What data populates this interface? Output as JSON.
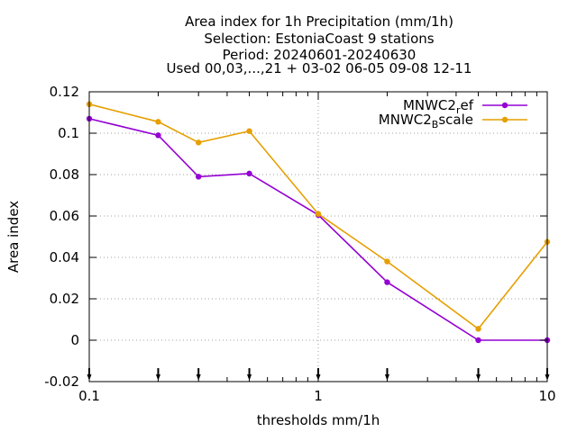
{
  "chart_data": {
    "type": "line",
    "title_lines": [
      "Area index  for 1h Precipitation (mm/1h)",
      "Selection: EstoniaCoast      9 stations",
      "Period: 20240601-20240630",
      "Used 00,03,...,21 + 03-02 06-05 09-08 12-11"
    ],
    "xlabel": "thresholds mm/1h",
    "ylabel": "Area index",
    "xscale": "log",
    "xlim": [
      0.1,
      10
    ],
    "ylim": [
      -0.02,
      0.12
    ],
    "xticks": [
      {
        "value": 0.1,
        "label": "0.1"
      },
      {
        "value": 1,
        "label": "1"
      },
      {
        "value": 10,
        "label": "10"
      }
    ],
    "yticks": [
      {
        "value": -0.02,
        "label": "-0.02"
      },
      {
        "value": 0,
        "label": "0"
      },
      {
        "value": 0.02,
        "label": "0.02"
      },
      {
        "value": 0.04,
        "label": "0.04"
      },
      {
        "value": 0.06,
        "label": "0.06"
      },
      {
        "value": 0.08,
        "label": "0.08"
      },
      {
        "value": 0.1,
        "label": "0.1"
      },
      {
        "value": 0.12,
        "label": "0.12"
      }
    ],
    "threshold_markers": [
      0.1,
      0.2,
      0.3,
      0.5,
      1,
      2,
      5,
      10
    ],
    "legend_position": "top-right",
    "x": [
      0.1,
      0.2,
      0.3,
      0.5,
      1,
      2,
      5,
      10
    ],
    "series": [
      {
        "name": "MNWC2_ref",
        "legend_main": "MNWC2",
        "legend_sub": "r",
        "legend_tail": "ef",
        "color": "#9400d3",
        "values": [
          0.107,
          0.099,
          0.079,
          0.0805,
          0.0605,
          0.028,
          0.0,
          0.0
        ]
      },
      {
        "name": "MNWC2_Bscale",
        "legend_main": "MNWC2",
        "legend_sub": "B",
        "legend_tail": "scale",
        "color": "#e69f00",
        "values": [
          0.114,
          0.1055,
          0.0955,
          0.101,
          0.061,
          0.038,
          0.0055,
          0.0475
        ]
      }
    ]
  }
}
